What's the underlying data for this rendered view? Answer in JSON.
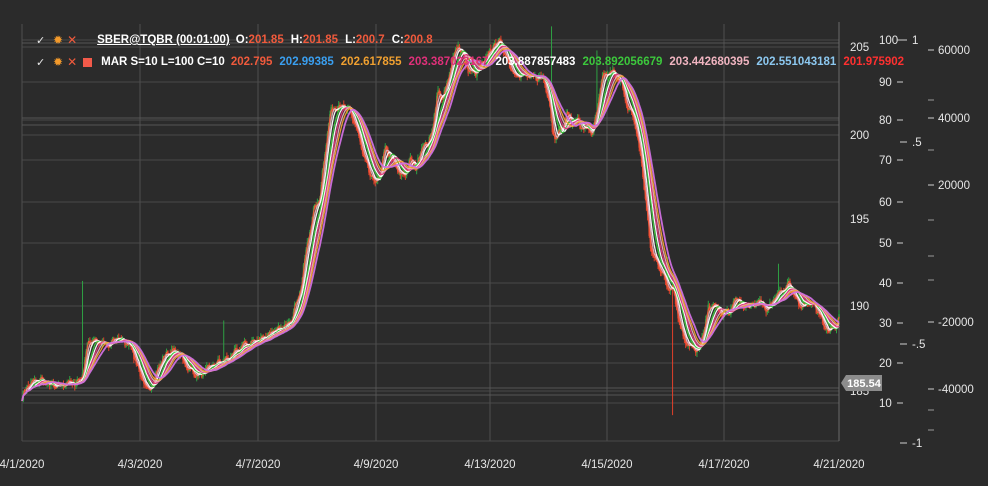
{
  "legend": {
    "ohlc": {
      "title": "SBER@TQBR (00:01:00)",
      "o_label": "O:",
      "o_value": "201.85",
      "h_label": "H:",
      "h_value": "201.85",
      "l_label": "L:",
      "l_value": "200.7",
      "c_label": "C:",
      "c_value": "200.8",
      "value_color": "#f05a3c"
    },
    "mar": {
      "title": "MAR S=10 L=100 C=10",
      "values": [
        {
          "text": "202.795",
          "color": "#f05a3c"
        },
        {
          "text": "202.99385",
          "color": "#3a9ff0"
        },
        {
          "text": "202.617855",
          "color": "#f0a030"
        },
        {
          "text": "203.387023167",
          "color": "#e0307a"
        },
        {
          "text": "203.887857483",
          "color": "#ffffff"
        },
        {
          "text": "203.892056679",
          "color": "#3cc83c"
        },
        {
          "text": "203.442680395",
          "color": "#f0b4c0"
        },
        {
          "text": "202.551043181",
          "color": "#8cc8f0"
        },
        {
          "text": "201.975902",
          "color": "#ff3030"
        }
      ]
    }
  },
  "price_tag": {
    "text": "185.54",
    "color": "#8c8c8c"
  },
  "chart_data": {
    "type": "line",
    "x_tick_labels": [
      "4/1/2020",
      "4/3/2020",
      "4/7/2020",
      "4/9/2020",
      "4/13/2020",
      "4/15/2020",
      "4/17/2020",
      "4/21/2020"
    ],
    "axes": {
      "price": {
        "ticks": [
          "205",
          "200",
          "195",
          "190",
          "185"
        ],
        "ylim": [
          183.5,
          206.5
        ]
      },
      "scale_10_100": {
        "ticks": [
          "100",
          "90",
          "80",
          "70",
          "60",
          "50",
          "40",
          "30",
          "20",
          "10"
        ],
        "ylim": [
          5,
          101
        ]
      },
      "scale_pm1": {
        "ticks": [
          "1",
          ".5",
          "-.5",
          "-1"
        ],
        "ylim": [
          -1,
          1
        ]
      },
      "volume": {
        "ticks": [
          "60000",
          "40000",
          "20000",
          "-20000",
          "-40000"
        ],
        "ylim": [
          -62000,
          62000
        ]
      }
    },
    "price_keypoints": [
      [
        0,
        184.6
      ],
      [
        4,
        185.3
      ],
      [
        9,
        185.5
      ],
      [
        14,
        185.7
      ],
      [
        20,
        185.4
      ],
      [
        28,
        185.2
      ],
      [
        35,
        185.5
      ],
      [
        42,
        185.4
      ],
      [
        48,
        185.9
      ],
      [
        52,
        187.8
      ],
      [
        58,
        188.0
      ],
      [
        64,
        187.7
      ],
      [
        70,
        187.6
      ],
      [
        75,
        188.2
      ],
      [
        80,
        187.9
      ],
      [
        86,
        187.7
      ],
      [
        93,
        186.1
      ],
      [
        99,
        184.9
      ],
      [
        104,
        185.6
      ],
      [
        110,
        186.7
      ],
      [
        116,
        187.3
      ],
      [
        124,
        187.2
      ],
      [
        133,
        186.2
      ],
      [
        142,
        185.9
      ],
      [
        150,
        186.5
      ],
      [
        158,
        186.7
      ],
      [
        166,
        187.0
      ],
      [
        174,
        187.6
      ],
      [
        182,
        187.8
      ],
      [
        190,
        188.1
      ],
      [
        198,
        188.4
      ],
      [
        206,
        188.6
      ],
      [
        214,
        189.3
      ],
      [
        221,
        191.0
      ],
      [
        227,
        193.9
      ],
      [
        231,
        195.4
      ],
      [
        236,
        196.2
      ],
      [
        240,
        198.8
      ],
      [
        244,
        201.0
      ],
      [
        247,
        201.5
      ],
      [
        251,
        201.6
      ],
      [
        256,
        201.5
      ],
      [
        260,
        201.2
      ],
      [
        264,
        200.6
      ],
      [
        268,
        199.5
      ],
      [
        272,
        198.3
      ],
      [
        276,
        197.6
      ],
      [
        280,
        197.1
      ],
      [
        284,
        197.5
      ],
      [
        288,
        199.3
      ],
      [
        292,
        198.5
      ],
      [
        296,
        198.1
      ],
      [
        300,
        197.5
      ],
      [
        304,
        197.7
      ],
      [
        308,
        198.4
      ],
      [
        313,
        198.0
      ],
      [
        318,
        199.5
      ],
      [
        322,
        199.2
      ],
      [
        326,
        200.6
      ],
      [
        330,
        202.4
      ],
      [
        334,
        202.0
      ],
      [
        338,
        203.1
      ],
      [
        342,
        204.5
      ],
      [
        346,
        205.2
      ],
      [
        350,
        204.4
      ],
      [
        354,
        203.7
      ],
      [
        358,
        203.4
      ],
      [
        362,
        203.7
      ],
      [
        366,
        204.1
      ],
      [
        370,
        204.6
      ],
      [
        374,
        205.1
      ],
      [
        378,
        205.4
      ],
      [
        382,
        204.8
      ],
      [
        386,
        204.1
      ],
      [
        390,
        203.5
      ],
      [
        394,
        203.3
      ],
      [
        398,
        203.4
      ],
      [
        402,
        203.2
      ],
      [
        406,
        203.2
      ],
      [
        410,
        203.3
      ],
      [
        414,
        203.1
      ],
      [
        418,
        202.0
      ],
      [
        421,
        199.9
      ],
      [
        424,
        199.9
      ],
      [
        428,
        200.2
      ],
      [
        432,
        201.1
      ],
      [
        436,
        200.6
      ],
      [
        440,
        200.8
      ],
      [
        444,
        200.2
      ],
      [
        448,
        200.4
      ],
      [
        452,
        199.8
      ],
      [
        456,
        201.2
      ],
      [
        460,
        203.3
      ],
      [
        464,
        203.4
      ],
      [
        468,
        203.5
      ],
      [
        472,
        203.4
      ],
      [
        476,
        202.7
      ],
      [
        480,
        201.4
      ],
      [
        484,
        201.2
      ],
      [
        488,
        199.8
      ],
      [
        492,
        198.0
      ],
      [
        495,
        195.7
      ],
      [
        498,
        193.6
      ],
      [
        501,
        192.7
      ],
      [
        504,
        192.5
      ],
      [
        508,
        191.8
      ],
      [
        512,
        191.0
      ],
      [
        516,
        191.2
      ],
      [
        520,
        189.5
      ],
      [
        524,
        188.2
      ],
      [
        528,
        187.8
      ],
      [
        532,
        187.4
      ],
      [
        536,
        187.3
      ],
      [
        540,
        188.2
      ],
      [
        544,
        189.7
      ],
      [
        548,
        190.1
      ],
      [
        552,
        189.7
      ],
      [
        556,
        189.4
      ],
      [
        560,
        189.5
      ],
      [
        564,
        190.1
      ],
      [
        568,
        190.4
      ],
      [
        572,
        189.7
      ],
      [
        576,
        190.1
      ],
      [
        580,
        189.8
      ],
      [
        584,
        190.3
      ],
      [
        588,
        190.0
      ],
      [
        592,
        189.7
      ],
      [
        596,
        190.4
      ],
      [
        600,
        190.8
      ],
      [
        604,
        190.9
      ],
      [
        608,
        191.2
      ],
      [
        612,
        190.5
      ],
      [
        616,
        190.1
      ],
      [
        620,
        190.0
      ],
      [
        624,
        190.3
      ],
      [
        628,
        189.9
      ],
      [
        632,
        189.5
      ],
      [
        636,
        188.8
      ],
      [
        640,
        188.5
      ],
      [
        644,
        188.7
      ],
      [
        648,
        189.3
      ]
    ]
  }
}
